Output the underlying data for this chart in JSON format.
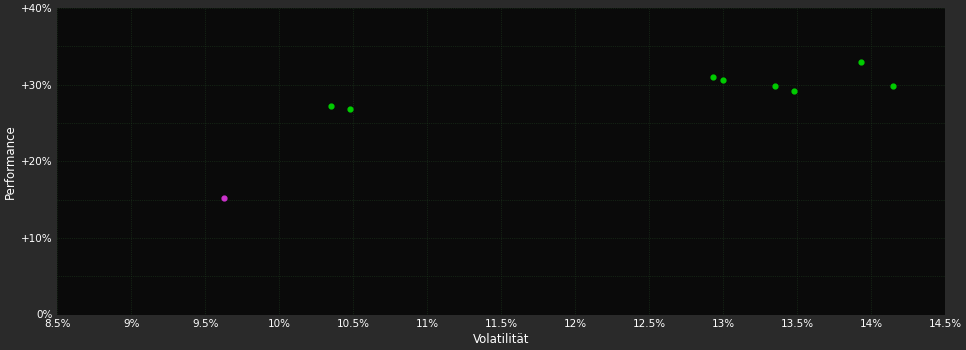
{
  "background_color": "#2a2a2a",
  "plot_bg_color": "#0a0a0a",
  "grid_color": "#1e3a1e",
  "text_color": "#ffffff",
  "xlabel": "Volatilität",
  "ylabel": "Performance",
  "xlim": [
    0.085,
    0.145
  ],
  "ylim": [
    0.0,
    0.4
  ],
  "xticks": [
    0.085,
    0.09,
    0.095,
    0.1,
    0.105,
    0.11,
    0.115,
    0.12,
    0.125,
    0.13,
    0.135,
    0.14,
    0.145
  ],
  "yticks": [
    0.0,
    0.1,
    0.2,
    0.3,
    0.4
  ],
  "ytick_labels": [
    "0%",
    "+10%",
    "+20%",
    "+30%",
    "+40%"
  ],
  "xtick_labels": [
    "8.5%",
    "9%",
    "9.5%",
    "10%",
    "10.5%",
    "11%",
    "11.5%",
    "12%",
    "12.5%",
    "13%",
    "13.5%",
    "14%",
    "14.5%"
  ],
  "green_points": [
    [
      0.1035,
      0.272
    ],
    [
      0.1048,
      0.268
    ],
    [
      0.1293,
      0.31
    ],
    [
      0.13,
      0.306
    ],
    [
      0.1335,
      0.298
    ],
    [
      0.1348,
      0.292
    ],
    [
      0.1393,
      0.33
    ],
    [
      0.1415,
      0.298
    ]
  ],
  "magenta_points": [
    [
      0.0963,
      0.152
    ]
  ],
  "point_size": 12,
  "green_color": "#00cc00",
  "magenta_color": "#cc33cc"
}
